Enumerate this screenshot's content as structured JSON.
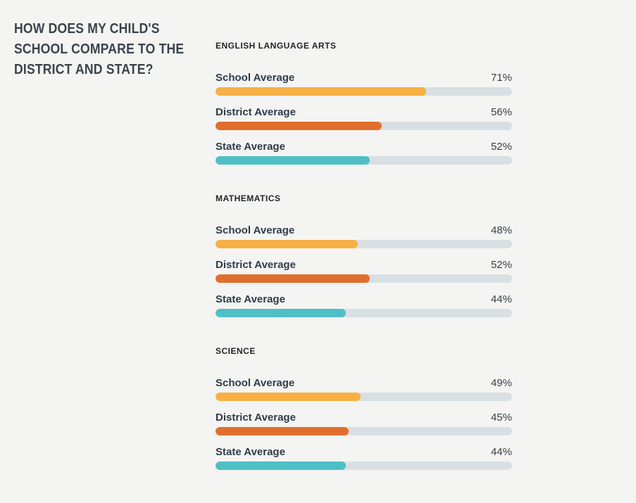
{
  "heading": {
    "lines": [
      "HOW DOES MY CHILD'S",
      "SCHOOL COMPARE TO THE",
      "DISTRICT AND STATE?"
    ]
  },
  "colors": {
    "school": "#F6B044",
    "district": "#E06F2D",
    "state": "#4FBFC6",
    "track": "#D9E0E3",
    "background": "#F4F4F2"
  },
  "sections": [
    {
      "title": "ENGLISH LANGUAGE ARTS",
      "rows": [
        {
          "label": "School Average",
          "value_label": "71%",
          "percent": 71
        },
        {
          "label": "District Average",
          "value_label": "56%",
          "percent": 56
        },
        {
          "label": "State Average",
          "value_label": "52%",
          "percent": 52
        }
      ]
    },
    {
      "title": "MATHEMATICS",
      "rows": [
        {
          "label": "School Average",
          "value_label": "48%",
          "percent": 48
        },
        {
          "label": "District Average",
          "value_label": "52%",
          "percent": 52
        },
        {
          "label": "State Average",
          "value_label": "44%",
          "percent": 44
        }
      ]
    },
    {
      "title": "SCIENCE",
      "rows": [
        {
          "label": "School Average",
          "value_label": "49%",
          "percent": 49
        },
        {
          "label": "District Average",
          "value_label": "45%",
          "percent": 45
        },
        {
          "label": "State Average",
          "value_label": "44%",
          "percent": 44
        }
      ]
    }
  ],
  "chart_data": {
    "type": "bar",
    "title": "HOW DOES MY CHILD'S SCHOOL COMPARE TO THE DISTRICT AND STATE?",
    "categories": [
      "School Average",
      "District Average",
      "State Average"
    ],
    "groups": [
      {
        "label": "ENGLISH LANGUAGE ARTS",
        "values": [
          71,
          56,
          52
        ]
      },
      {
        "label": "MATHEMATICS",
        "values": [
          48,
          52,
          44
        ]
      },
      {
        "label": "SCIENCE",
        "values": [
          49,
          45,
          44
        ]
      }
    ],
    "unit": "%",
    "xlim": [
      0,
      100
    ],
    "orientation": "horizontal",
    "grid": false,
    "legend": "none"
  }
}
